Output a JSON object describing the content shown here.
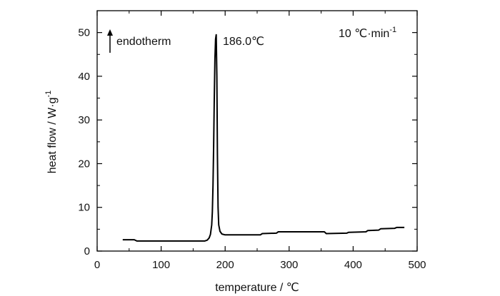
{
  "chart_data": {
    "type": "line",
    "title": "",
    "xlabel": "temperature / ℃",
    "ylabel": "heat flow / W·g",
    "ylabel_superscript": "-1",
    "xlim": [
      0,
      500
    ],
    "ylim": [
      0,
      55
    ],
    "x_ticks": [
      0,
      100,
      200,
      300,
      400,
      500
    ],
    "y_ticks": [
      0,
      10,
      20,
      30,
      40,
      50
    ],
    "grid": false,
    "legend": "none",
    "line_color": "#000000",
    "annotations": {
      "endotherm": "endotherm",
      "peak_label": "186.0℃",
      "rate_label": "10 ℃·min",
      "rate_superscript": "-1"
    },
    "series": [
      {
        "points": [
          [
            40,
            2.6
          ],
          [
            58,
            2.6
          ],
          [
            62,
            2.3
          ],
          [
            100,
            2.3
          ],
          [
            150,
            2.3
          ],
          [
            168,
            2.3
          ],
          [
            172,
            2.5
          ],
          [
            175,
            3.0
          ],
          [
            177,
            3.8
          ],
          [
            179,
            6
          ],
          [
            180,
            9
          ],
          [
            181,
            15
          ],
          [
            182,
            24
          ],
          [
            183,
            35
          ],
          [
            184,
            44
          ],
          [
            185,
            48.5
          ],
          [
            186,
            49.5
          ],
          [
            187,
            40
          ],
          [
            188,
            22
          ],
          [
            189,
            10
          ],
          [
            190,
            6
          ],
          [
            192,
            4.5
          ],
          [
            195,
            3.9
          ],
          [
            200,
            3.7
          ],
          [
            230,
            3.7
          ],
          [
            255,
            3.7
          ],
          [
            258,
            4.0
          ],
          [
            280,
            4.1
          ],
          [
            283,
            4.4
          ],
          [
            330,
            4.4
          ],
          [
            355,
            4.4
          ],
          [
            358,
            4.0
          ],
          [
            390,
            4.1
          ],
          [
            393,
            4.3
          ],
          [
            420,
            4.4
          ],
          [
            423,
            4.7
          ],
          [
            440,
            4.8
          ],
          [
            443,
            5.1
          ],
          [
            465,
            5.2
          ],
          [
            468,
            5.4
          ],
          [
            480,
            5.4
          ]
        ]
      }
    ]
  }
}
